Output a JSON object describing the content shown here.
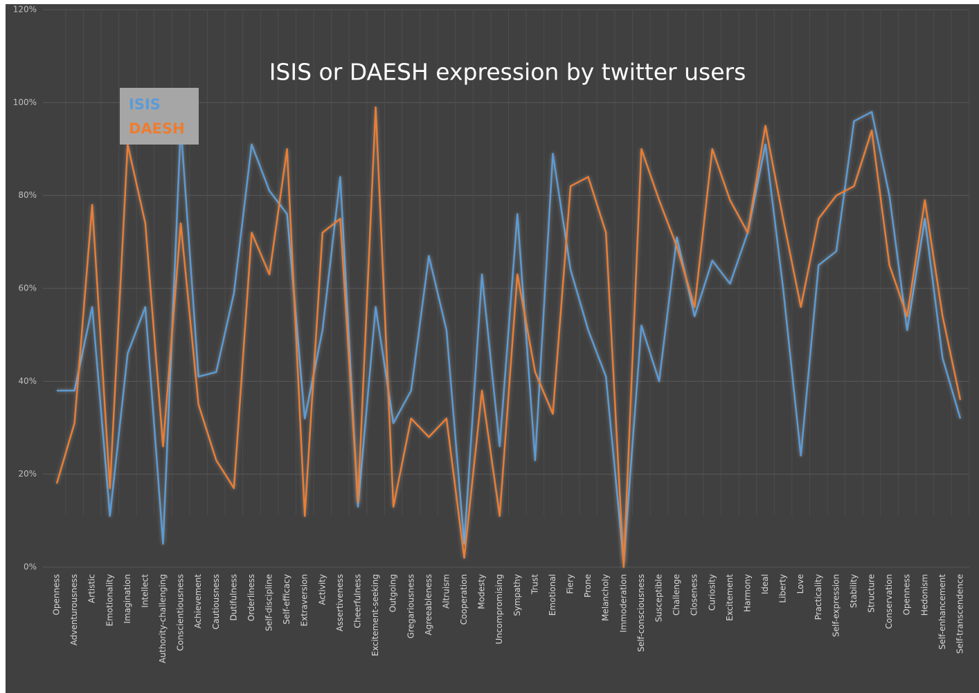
{
  "chart_data": {
    "type": "line",
    "title": "ISIS or DAESH expression by twitter users",
    "categories": [
      "Openness",
      "Adventurousness",
      "Artistic",
      "Emotionality",
      "Imagination",
      "Intellect",
      "Authority-challenging",
      "Conscientiousness",
      "Achievement",
      "Cautiousness",
      "Dutifulness",
      "Orderliness",
      "Self-discipline",
      "Self-efficacy",
      "Extraversion",
      "Activity",
      "Assertiveness",
      "Cheerfulness",
      "Excitement-seeking",
      "Outgoing",
      "Gregariousness",
      "Agreeableness",
      "Altruism",
      "Cooperation",
      "Modesty",
      "Uncompromising",
      "Sympathy",
      "Trust",
      "Emotional",
      "Fiery",
      "Prone",
      "Melancholy",
      "Immoderation",
      "Self-consciousness",
      "Susceptible",
      "Challenge",
      "Closeness",
      "Curiosity",
      "Excitement",
      "Harmony",
      "Ideal",
      "Liberty",
      "Love",
      "Practicality",
      "Self-expression",
      "Stability",
      "Structure",
      "Conservation",
      "Openness",
      "Hedonism",
      "Self-enhancement",
      "Self-transcendence"
    ],
    "series": [
      {
        "name": "ISIS",
        "color": "#5b9bd5",
        "values": [
          38,
          38,
          56,
          11,
          46,
          56,
          5,
          95,
          41,
          42,
          59,
          91,
          81,
          76,
          32,
          51,
          84,
          13,
          56,
          31,
          38,
          67,
          51,
          5,
          63,
          26,
          76,
          23,
          89,
          64,
          51,
          41,
          1,
          52,
          40,
          71,
          54,
          66,
          61,
          72,
          91,
          60,
          24,
          65,
          68,
          96,
          98,
          80,
          51,
          75,
          45,
          32
        ]
      },
      {
        "name": "DAESH",
        "color": "#ed7d31",
        "values": [
          18,
          31,
          78,
          17,
          91,
          74,
          26,
          74,
          35,
          23,
          17,
          72,
          63,
          90,
          11,
          72,
          75,
          14,
          99,
          13,
          32,
          28,
          32,
          2,
          38,
          11,
          63,
          42,
          33,
          82,
          84,
          72,
          0,
          90,
          79,
          69,
          56,
          90,
          79,
          72,
          95,
          75,
          56,
          75,
          80,
          82,
          94,
          65,
          54,
          79,
          54,
          36
        ]
      }
    ],
    "ylim": [
      0,
      120
    ],
    "yticks": [
      {
        "value": 0,
        "label": "0%"
      },
      {
        "value": 20,
        "label": "20%"
      },
      {
        "value": 40,
        "label": "40%"
      },
      {
        "value": 60,
        "label": "60%"
      },
      {
        "value": 80,
        "label": "80%"
      },
      {
        "value": 100,
        "label": "100%"
      },
      {
        "value": 120,
        "label": "120%"
      }
    ],
    "grid": true
  }
}
